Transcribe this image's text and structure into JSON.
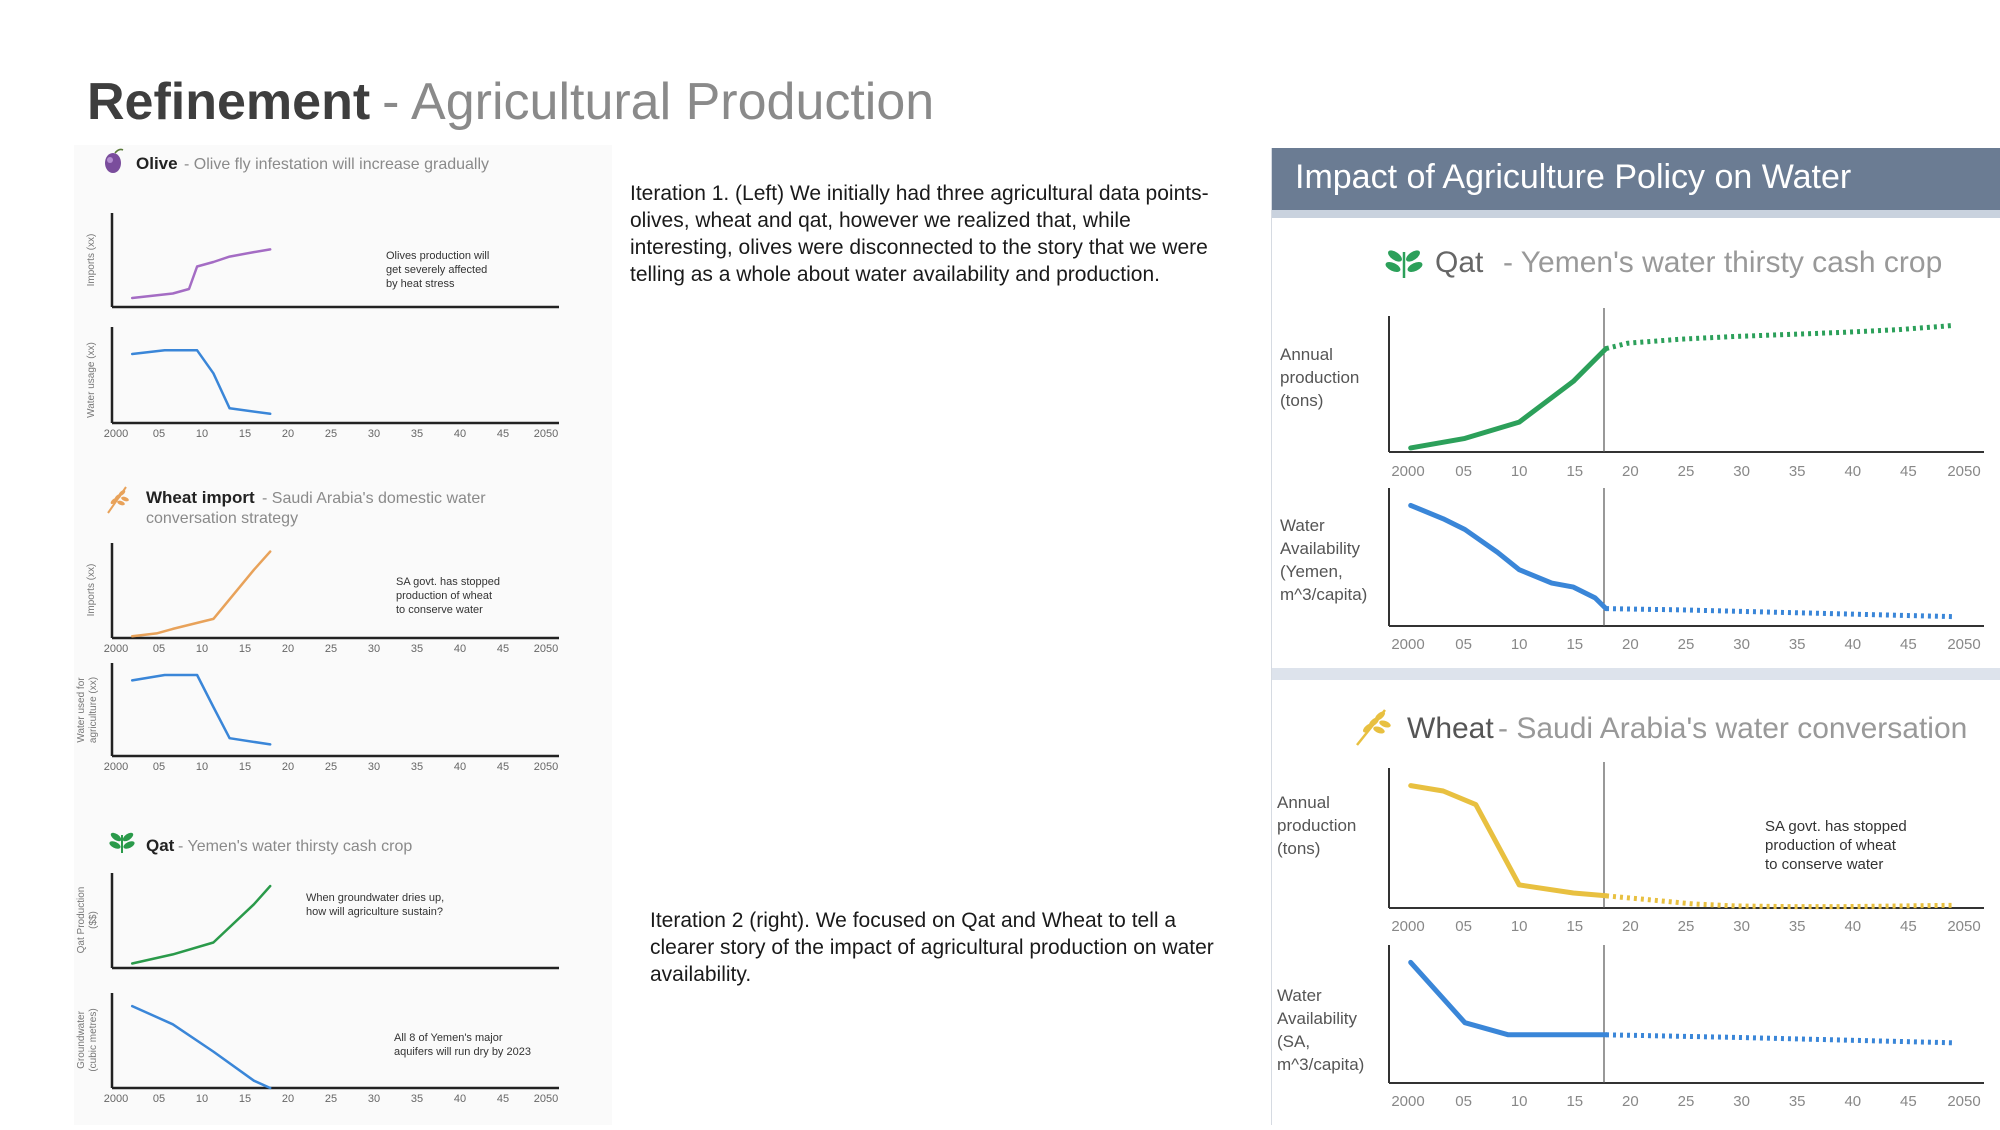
{
  "slide": {
    "title_bold": "Refinement",
    "title_rest": "- Agricultural Production",
    "note1": "Iteration 1. (Left)  We initially had three agricultural data points- olives, wheat and qat, however we realized that, while interesting, olives were disconnected to the story that we were telling as a whole about water availability and production.",
    "note2": "Iteration 2 (right). We focused on Qat and Wheat to tell a clearer story of the impact of agricultural production on water availability."
  },
  "icons": {
    "olive": "olive-icon",
    "wheat": "wheat-icon",
    "qat": "qat-leaf-icon"
  },
  "colors": {
    "olive": "#a46cc4",
    "wheat_import": "#e8a25a",
    "water": "#3a86d8",
    "qat": "#2a9a4a",
    "qat_right": "#2ca05a",
    "wheat_right": "#e8c040",
    "banner": "#6b7c93"
  },
  "left": {
    "olive": {
      "name": "Olive",
      "subtitle": "- Olive fly infestation will increase gradually",
      "ylabel_top": "Imports (xx)",
      "ylabel_bottom": "Water usage (xx)",
      "annotation": [
        "Olives production will",
        "get severely affected",
        "by heat stress"
      ]
    },
    "wheat": {
      "name": "Wheat import",
      "subtitle": "- Saudi Arabia's domestic water",
      "subtitle2": "conversation strategy",
      "ylabel_top": "Imports (xx)",
      "ylabel_bottom": [
        "Water used for",
        "agriculture (xx)"
      ],
      "annotation": [
        "SA govt. has stopped",
        "production of wheat",
        "to conserve water"
      ]
    },
    "qat": {
      "name": "Qat",
      "subtitle": "- Yemen's water thirsty cash crop",
      "ylabel_top": [
        "Qat Production",
        "($$)"
      ],
      "ylabel_bottom": [
        "Groundwater",
        "(cubic metres)"
      ],
      "annotation_top": [
        "When groundwater dries up,",
        "how will agriculture sustain?"
      ],
      "annotation_bottom": [
        "All 8 of Yemen's major",
        "aquifers will run dry by 2023"
      ]
    }
  },
  "right": {
    "banner": "Impact of Agriculture Policy on Water",
    "qat": {
      "name": "Qat",
      "subtitle": "- Yemen's water thirsty cash crop",
      "ylabel_top": [
        "Annual",
        "production",
        "(tons)"
      ],
      "ylabel_bottom": [
        "Water",
        "Availability",
        "(Yemen,",
        "m^3/capita)"
      ]
    },
    "wheat": {
      "name": "Wheat",
      "subtitle": "- Saudi Arabia's water conversation",
      "ylabel_top": [
        "Annual",
        "production",
        "(tons)"
      ],
      "ylabel_bottom": [
        "Water",
        "Availability",
        "(SA,",
        "m^3/capita)"
      ],
      "annotation": [
        "SA govt. has stopped",
        "production of wheat",
        "to conserve water"
      ]
    }
  },
  "chart_data": [
    {
      "id": "olive_imports",
      "type": "line",
      "unit": "xx",
      "x": [
        2000,
        2005,
        2007,
        2008,
        2010,
        2012,
        2015,
        2017
      ],
      "values": [
        1,
        1.5,
        2,
        4.5,
        5,
        5.6,
        6.1,
        6.4
      ],
      "xlim": [
        1998,
        2051
      ],
      "ylim": [
        0,
        10
      ],
      "projection_x": [],
      "projection_values": []
    },
    {
      "id": "olive_water",
      "type": "line",
      "unit": "xx",
      "x": [
        2000,
        2004,
        2008,
        2010,
        2012,
        2017
      ],
      "values": [
        7.5,
        7.9,
        7.9,
        5.4,
        1.6,
        1.0
      ],
      "xlim": [
        1998,
        2051
      ],
      "ylim": [
        0,
        10
      ],
      "projection_x": [],
      "projection_values": []
    },
    {
      "id": "wheat_imports",
      "type": "line",
      "unit": "xx",
      "x": [
        2000,
        2003,
        2005,
        2010,
        2015,
        2017
      ],
      "values": [
        0.2,
        0.5,
        1.0,
        2.1,
        7.5,
        9.5
      ],
      "xlim": [
        1998,
        2051
      ],
      "ylim": [
        0,
        10
      ],
      "projection_x": [],
      "projection_values": []
    },
    {
      "id": "wheat_water_agri",
      "type": "line",
      "unit": "xx",
      "x": [
        2000,
        2004,
        2008,
        2010,
        2012,
        2017
      ],
      "values": [
        8.5,
        9.1,
        9.1,
        5.5,
        2.0,
        1.3
      ],
      "xlim": [
        1998,
        2051
      ],
      "ylim": [
        0,
        10
      ],
      "projection_x": [],
      "projection_values": []
    },
    {
      "id": "qat_production",
      "type": "line",
      "unit": "$$",
      "x": [
        2000,
        2005,
        2010,
        2015,
        2017
      ],
      "values": [
        0.5,
        1.5,
        2.8,
        7.0,
        9.0
      ],
      "xlim": [
        1998,
        2051
      ],
      "ylim": [
        0,
        10
      ],
      "projection_x": [],
      "projection_values": []
    },
    {
      "id": "qat_groundwater",
      "type": "line",
      "unit": "cubic metres",
      "x": [
        2000,
        2005,
        2010,
        2015,
        2017
      ],
      "values": [
        9.0,
        7.0,
        4.0,
        0.8,
        0
      ],
      "xlim": [
        1998,
        2051
      ],
      "ylim": [
        0,
        10
      ],
      "projection_x": [],
      "projection_values": []
    },
    {
      "id": "r_qat_production",
      "type": "line",
      "unit": "tons",
      "x": [
        2000,
        2005,
        2010,
        2015,
        2018
      ],
      "values": [
        0.3,
        1.0,
        2.2,
        5.2,
        7.6
      ],
      "projection_x": [
        2018,
        2020,
        2025,
        2030,
        2035,
        2040,
        2045,
        2050
      ],
      "projection_values": [
        7.6,
        8.0,
        8.3,
        8.5,
        8.65,
        8.8,
        9.0,
        9.3
      ],
      "xlim": [
        1998,
        2051
      ],
      "ylim": [
        0,
        10
      ]
    },
    {
      "id": "r_qat_water",
      "type": "line",
      "unit": "m^3/capita",
      "x": [
        2000,
        2003,
        2005,
        2008,
        2010,
        2013,
        2015,
        2017,
        2018
      ],
      "values": [
        9.0,
        8.0,
        7.2,
        5.5,
        4.2,
        3.2,
        2.9,
        2.1,
        1.3
      ],
      "projection_x": [
        2018,
        2025,
        2035,
        2045,
        2050
      ],
      "projection_values": [
        1.3,
        1.2,
        1.0,
        0.8,
        0.7
      ],
      "xlim": [
        1998,
        2051
      ],
      "ylim": [
        0,
        10
      ]
    },
    {
      "id": "r_wheat_production",
      "type": "line",
      "unit": "tons",
      "x": [
        2000,
        2003,
        2006,
        2010,
        2015,
        2018
      ],
      "values": [
        9.0,
        8.6,
        7.6,
        1.7,
        1.1,
        0.9
      ],
      "projection_x": [
        2018,
        2022,
        2026,
        2030,
        2035,
        2040,
        2045,
        2050
      ],
      "projection_values": [
        0.9,
        0.6,
        0.3,
        0.15,
        0.1,
        0.1,
        0.15,
        0.2
      ],
      "xlim": [
        1998,
        2051
      ],
      "ylim": [
        0,
        10
      ]
    },
    {
      "id": "r_wheat_water",
      "type": "line",
      "unit": "m^3/capita",
      "x": [
        2000,
        2005,
        2009,
        2018
      ],
      "values": [
        9.0,
        4.5,
        3.6,
        3.6
      ],
      "projection_x": [
        2018,
        2030,
        2040,
        2050
      ],
      "projection_values": [
        3.6,
        3.4,
        3.2,
        3.0
      ],
      "xlim": [
        1998,
        2051
      ],
      "ylim": [
        0,
        10
      ]
    }
  ]
}
